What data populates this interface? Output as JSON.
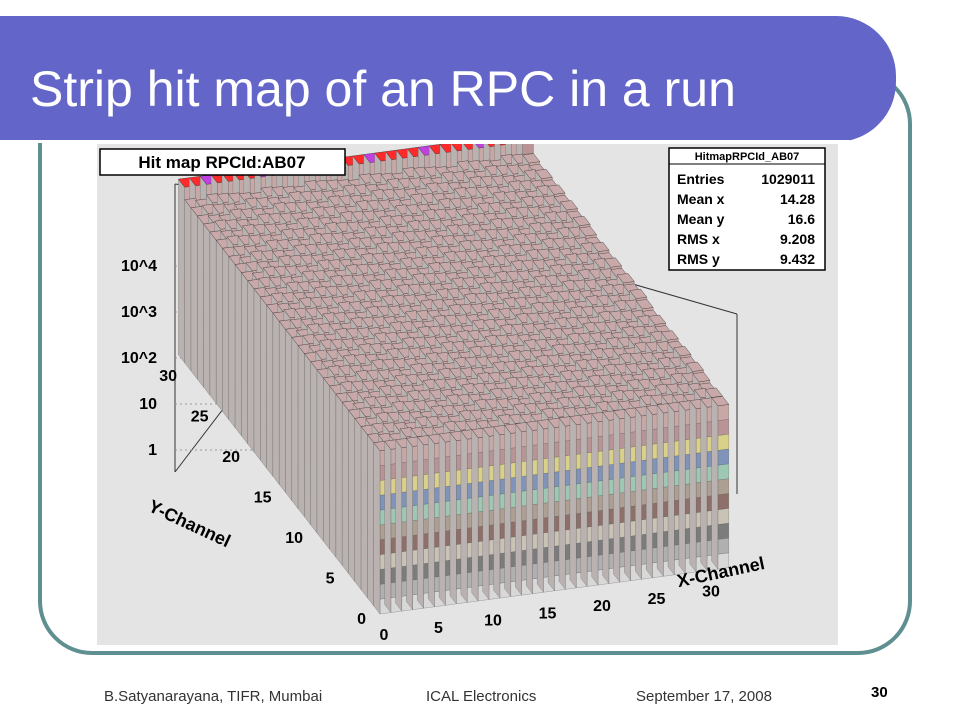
{
  "slide": {
    "title": "Strip hit map of an RPC in a run",
    "footer_author": "B.Satyanarayana, TIFR, Mumbai",
    "footer_event": "ICAL Electronics",
    "footer_date": "September 17, 2008",
    "slide_number": "30"
  },
  "chart_data": {
    "type": "lego3d",
    "title": "Hit map RPCId:AB07",
    "xlabel": "X-Channel",
    "ylabel": "Y-Channel",
    "x_ticks": [
      "0",
      "5",
      "10",
      "15",
      "20",
      "25",
      "30"
    ],
    "y_ticks": [
      "0",
      "5",
      "10",
      "15",
      "20",
      "25",
      "30"
    ],
    "z_ticks": [
      "1",
      "10",
      "10^2",
      "10^3",
      "10^4"
    ],
    "z_scale": "log",
    "xlim": [
      0,
      32
    ],
    "ylim": [
      0,
      32
    ],
    "zlim": [
      0.3,
      40000
    ],
    "typical_bin_value": 2500,
    "peak_bin": {
      "x": 31,
      "y": 31,
      "value": 20000
    },
    "stats_box": {
      "name": "HitmapRPCId_AB07",
      "rows": [
        {
          "label": "Entries",
          "value": "1029011"
        },
        {
          "label": "Mean x",
          "value": "14.28"
        },
        {
          "label": "Mean y",
          "value": "16.6"
        },
        {
          "label": "RMS x",
          "value": "9.208"
        },
        {
          "label": "RMS y",
          "value": "9.432"
        }
      ]
    },
    "band_colors": [
      "#d8d8d8",
      "#b0b0b0",
      "#7c7c7c",
      "#c9c3b5",
      "#8e6f6a",
      "#ad9f92",
      "#9ec8b4",
      "#7f94b8",
      "#d9d08a",
      "#b89496",
      "#c8a8a6"
    ],
    "top_colors": {
      "base": "#c8a8a8",
      "high": "#ff2a2a",
      "max": "#c040e0"
    }
  }
}
